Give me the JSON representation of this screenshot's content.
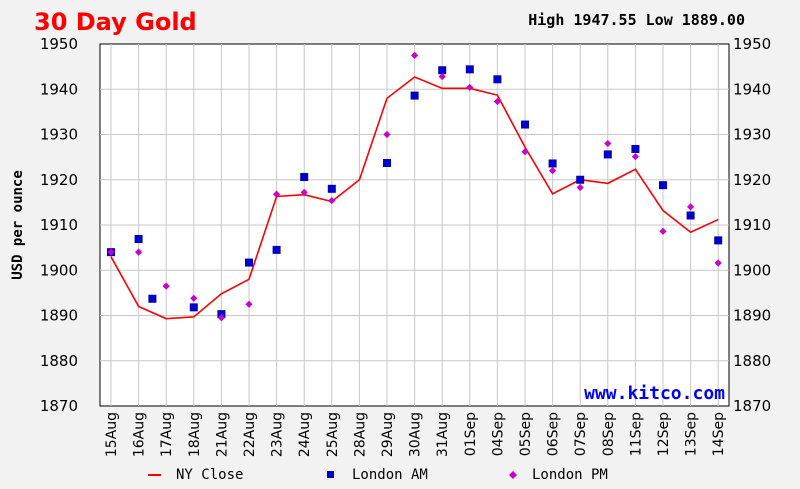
{
  "header": {
    "title": "30 Day Gold",
    "high_label": "High",
    "high_value": "1947.55",
    "low_label": "Low",
    "low_value": "1889.00"
  },
  "watermark": "www.kitco.com",
  "colors": {
    "title": "#ff0000",
    "ny_close": "#ff0000",
    "london_am": "#0000c8",
    "london_pm": "#cc00cc",
    "grid": "#c8c8c8",
    "watermark": "#0000ff",
    "plot_bg": "#ffffff",
    "page_bg": "#f2f2f2"
  },
  "chart_data": {
    "type": "line",
    "title": "30 Day Gold",
    "xlabel": "",
    "ylabel": "USD per ounce",
    "ylim": [
      1870,
      1950
    ],
    "yticks": [
      1870,
      1880,
      1890,
      1900,
      1910,
      1920,
      1930,
      1940,
      1950
    ],
    "grid": true,
    "legend": "bottom",
    "categories": [
      "15Aug",
      "16Aug",
      "17Aug",
      "18Aug",
      "21Aug",
      "22Aug",
      "23Aug",
      "24Aug",
      "25Aug",
      "28Aug",
      "29Aug",
      "30Aug",
      "31Aug",
      "01Sep",
      "04Sep",
      "05Sep",
      "06Sep",
      "07Sep",
      "08Sep",
      "11Sep",
      "12Sep",
      "13Sep",
      "14Sep"
    ],
    "series": [
      {
        "name": "NY Close",
        "style": "line",
        "values": [
          1903,
          1892,
          1889.3,
          1889.7,
          1894.8,
          1898,
          1916.3,
          1916.7,
          1915.2,
          1920,
          1938,
          1942.7,
          1940.2,
          1940.2,
          1938.7,
          1927.2,
          1916.9,
          1920,
          1919.2,
          1922.3,
          1913.2,
          1908.4,
          1911.2
        ]
      },
      {
        "name": "London AM",
        "style": "square",
        "values": [
          1904,
          1906.9,
          null,
          1891.8,
          1890.3,
          1901.7,
          1904.5,
          1920.6,
          1918,
          null,
          1923.7,
          1938.6,
          1944.2,
          1944.4,
          1942.2,
          1932.2,
          1923.6,
          1920,
          1925.6,
          1926.8,
          1918.8,
          1912.1,
          1906.6
        ]
      },
      {
        "name": "London PM",
        "style": "diamond",
        "values": [
          1904,
          1904,
          1896.5,
          1893.8,
          1889.5,
          1892.5,
          1916.8,
          1917.2,
          1915.4,
          null,
          1930,
          1947.5,
          1942.8,
          1940.4,
          1937.3,
          1926.2,
          1922,
          1918.3,
          1928,
          1925.1,
          1908.6,
          1914,
          1901.6
        ]
      }
    ],
    "extra_points": [
      {
        "series": "London AM",
        "x_between": [
          "16Aug",
          "17Aug"
        ],
        "value": 1893.7
      }
    ]
  }
}
